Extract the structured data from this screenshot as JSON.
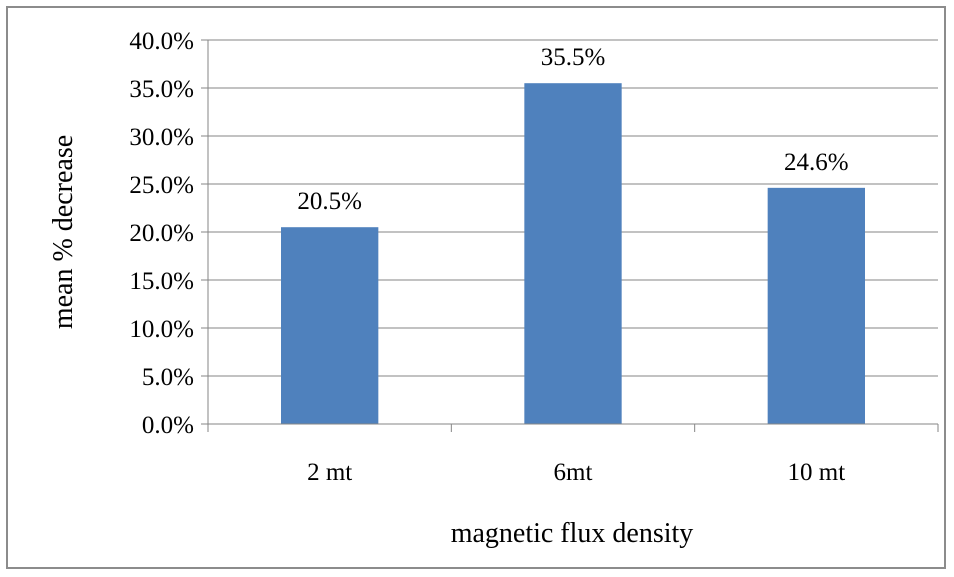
{
  "chart_data": {
    "type": "bar",
    "categories": [
      "2 mt",
      "6mt",
      "10 mt"
    ],
    "values": [
      0.205,
      0.355,
      0.246
    ],
    "data_labels": [
      "20.5%",
      "35.5%",
      "24.6%"
    ],
    "xlabel": "magnetic flux density",
    "ylabel": "mean % decrease",
    "ylim": [
      0,
      0.4
    ],
    "y_ticks": [
      0,
      0.05,
      0.1,
      0.15,
      0.2,
      0.25,
      0.3,
      0.35,
      0.4
    ],
    "y_tick_labels": [
      "0.0%",
      "5.0%",
      "10.0%",
      "15.0%",
      "20.0%",
      "25.0%",
      "30.0%",
      "35.0%",
      "40.0%"
    ],
    "grid": true,
    "legend": "none",
    "bar_color": "#4f81bd",
    "gridline_color": "#868686"
  }
}
